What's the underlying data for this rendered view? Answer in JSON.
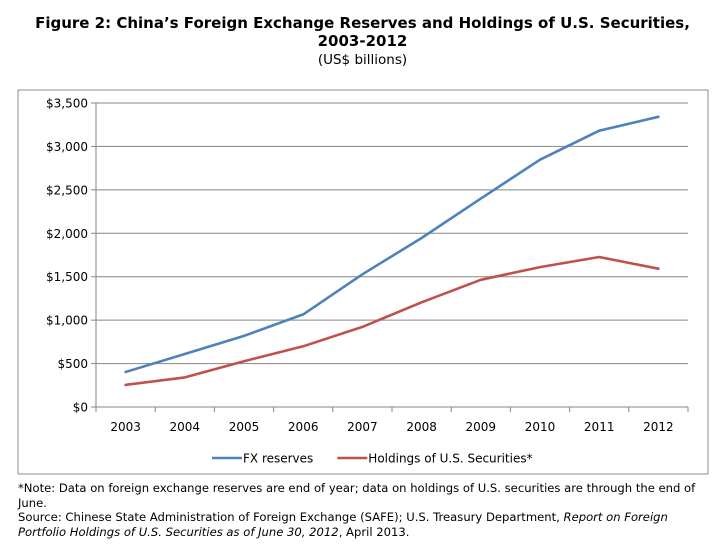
{
  "figure": {
    "title_line1": "Figure 2: China’s Foreign Exchange Reserves and Holdings of U.S. Securities,",
    "title_line2": "2003-2012",
    "subtitle": "(US$ billions)"
  },
  "notes": {
    "note": "*Note: Data on foreign exchange reserves are end of year; data on holdings of U.S. securities are through the end of June.",
    "source_prefix": "Source: Chinese State Administration of Foreign Exchange (SAFE); U.S. Treasury Department, ",
    "source_italic": "Report on Foreign Portfolio Holdings of U.S. Securities as of June 30, 2012",
    "source_suffix": ", April 2013."
  },
  "chart_data": {
    "type": "line",
    "title": "China’s Foreign Exchange Reserves and Holdings of U.S. Securities, 2003-2012",
    "ylabel": "US$ billions",
    "xlabel": "",
    "ylim": [
      0,
      3500
    ],
    "yticks": [
      0,
      500,
      1000,
      1500,
      2000,
      2500,
      3000,
      3500
    ],
    "ytick_labels": [
      "$0",
      "$500",
      "$1,000",
      "$1,500",
      "$2,000",
      "$2,500",
      "$3,000",
      "$3,500"
    ],
    "categories": [
      "2003",
      "2004",
      "2005",
      "2006",
      "2007",
      "2008",
      "2009",
      "2010",
      "2011",
      "2012"
    ],
    "grid": true,
    "legend_position": "bottom",
    "series": [
      {
        "name": "FX reserves",
        "color": "#4f81bd",
        "values": [
          403,
          610,
          819,
          1066,
          1528,
          1946,
          2399,
          2847,
          3181,
          3341
        ]
      },
      {
        "name": "Holdings of U.S. Securities*",
        "color": "#c0504d",
        "values": [
          255,
          341,
          527,
          699,
          922,
          1205,
          1464,
          1611,
          1727,
          1592
        ]
      }
    ]
  }
}
